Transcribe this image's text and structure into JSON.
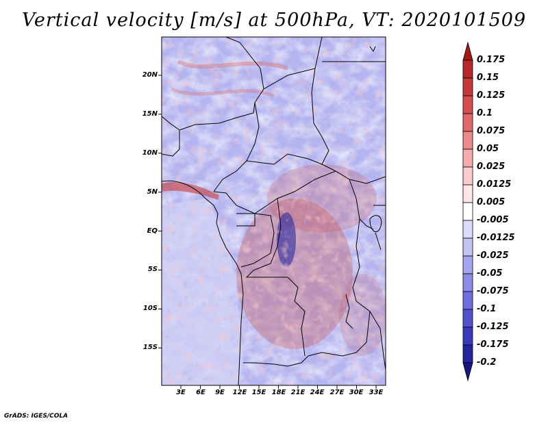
{
  "title": "Vertical velocity [m/s] at 500hPa, VT: 2020101509",
  "credit": "GrADS: IGES/COLA",
  "map": {
    "lat_labels": [
      "20N",
      "15N",
      "10N",
      "5N",
      "EQ",
      "5S",
      "10S",
      "15S"
    ],
    "lon_labels": [
      "3E",
      "6E",
      "9E",
      "12E",
      "15E",
      "18E",
      "21E",
      "24E",
      "27E",
      "30E",
      "33E"
    ]
  },
  "colorbar": {
    "labels": [
      "0.175",
      "0.15",
      "0.125",
      "0.1",
      "0.075",
      "0.05",
      "0.025",
      "0.0125",
      "0.005",
      "-0.005",
      "-0.0125",
      "-0.025",
      "-0.05",
      "-0.075",
      "-0.1",
      "-0.125",
      "-0.175",
      "-0.2"
    ],
    "colors": [
      "#a01818",
      "#b42828",
      "#c43a3a",
      "#d45050",
      "#e06a6a",
      "#eb8a8a",
      "#f4acac",
      "#f9cccc",
      "#fde6e6",
      "#ffffff",
      "#dcdcf9",
      "#c4c4f4",
      "#a6a6ee",
      "#8c8ce6",
      "#6e6ede",
      "#5252cc",
      "#3a3ab8",
      "#24249c",
      "#161680"
    ]
  }
}
